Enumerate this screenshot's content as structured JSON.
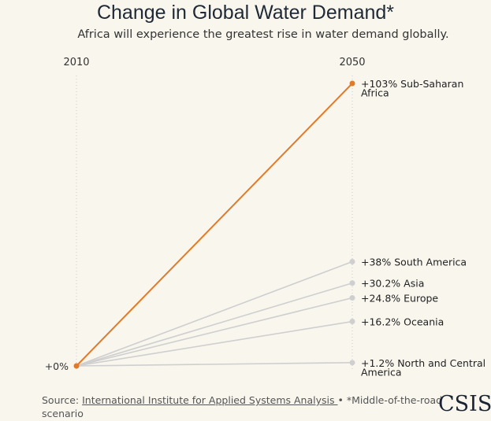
{
  "chart_data": {
    "type": "line",
    "title": "Change in Global Water Demand*",
    "subtitle": "Africa will experience the greatest rise in water demand globally.",
    "x": [
      "2010",
      "2050"
    ],
    "start_label": "+0%",
    "ylim": [
      0,
      103
    ],
    "highlight_color": "#e07b2a",
    "muted_color": "#cfcfcf",
    "series": [
      {
        "name": "Sub-Saharan Africa",
        "values": [
          0,
          103
        ],
        "label_lines": [
          "+103% Sub-Saharan",
          "Africa"
        ],
        "highlight": true
      },
      {
        "name": "South America",
        "values": [
          0,
          38
        ],
        "label_lines": [
          "+38% South America"
        ],
        "highlight": false
      },
      {
        "name": "Asia",
        "values": [
          0,
          30.2
        ],
        "label_lines": [
          "+30.2% Asia"
        ],
        "highlight": false
      },
      {
        "name": "Europe",
        "values": [
          0,
          24.8
        ],
        "label_lines": [
          "+24.8% Europe"
        ],
        "highlight": false
      },
      {
        "name": "Oceania",
        "values": [
          0,
          16.2
        ],
        "label_lines": [
          "+16.2% Oceania"
        ],
        "highlight": false
      },
      {
        "name": "North and Central America",
        "values": [
          0,
          1.2
        ],
        "label_lines": [
          "+1.2% North and Central",
          "America"
        ],
        "highlight": false
      }
    ]
  },
  "footer": {
    "source_prefix": "Source: ",
    "source_link": "International Institute for Applied Systems Analysis ",
    "note": " • *Middle-of-the-road scenario"
  },
  "logo": "CSIS"
}
